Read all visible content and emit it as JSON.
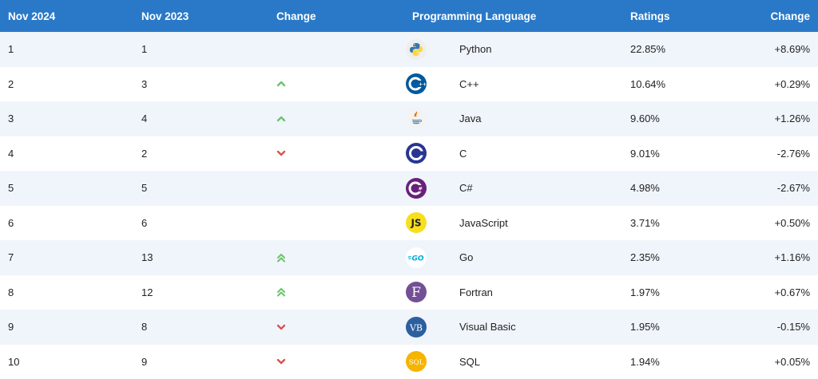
{
  "header": {
    "rank_now": "Nov 2024",
    "rank_prev": "Nov 2023",
    "change": "Change",
    "language": "Programming Language",
    "ratings": "Ratings",
    "change_pct": "Change"
  },
  "rows": [
    {
      "now": "1",
      "prev": "1",
      "trend": "none",
      "icon": "python-logo",
      "language": "Python",
      "rating": "22.85%",
      "delta": "+8.69%"
    },
    {
      "now": "2",
      "prev": "3",
      "trend": "up",
      "icon": "cpp-logo",
      "language": "C++",
      "rating": "10.64%",
      "delta": "+0.29%"
    },
    {
      "now": "3",
      "prev": "4",
      "trend": "up",
      "icon": "java-logo",
      "language": "Java",
      "rating": "9.60%",
      "delta": "+1.26%"
    },
    {
      "now": "4",
      "prev": "2",
      "trend": "down",
      "icon": "c-logo",
      "language": "C",
      "rating": "9.01%",
      "delta": "-2.76%"
    },
    {
      "now": "5",
      "prev": "5",
      "trend": "none",
      "icon": "csharp-logo",
      "language": "C#",
      "rating": "4.98%",
      "delta": "-2.67%"
    },
    {
      "now": "6",
      "prev": "6",
      "trend": "none",
      "icon": "javascript-logo",
      "language": "JavaScript",
      "rating": "3.71%",
      "delta": "+0.50%"
    },
    {
      "now": "7",
      "prev": "13",
      "trend": "up-double",
      "icon": "go-logo",
      "language": "Go",
      "rating": "2.35%",
      "delta": "+1.16%"
    },
    {
      "now": "8",
      "prev": "12",
      "trend": "up-double",
      "icon": "fortran-logo",
      "language": "Fortran",
      "rating": "1.97%",
      "delta": "+0.67%"
    },
    {
      "now": "9",
      "prev": "8",
      "trend": "down",
      "icon": "visual-basic-logo",
      "language": "Visual Basic",
      "rating": "1.95%",
      "delta": "-0.15%"
    },
    {
      "now": "10",
      "prev": "9",
      "trend": "down",
      "icon": "sql-logo",
      "language": "SQL",
      "rating": "1.94%",
      "delta": "+0.05%"
    }
  ],
  "colors": {
    "header_bg": "#2a79c8",
    "row_alt_bg": "#f0f5fb",
    "trend_up": "#6cc36c",
    "trend_down": "#d9534f"
  }
}
